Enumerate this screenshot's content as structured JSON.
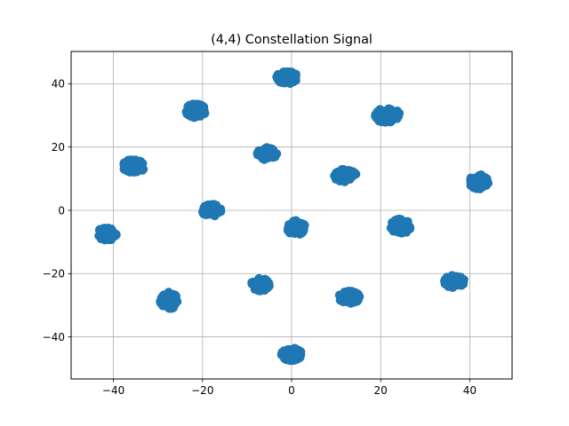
{
  "chart_data": {
    "type": "scatter",
    "title": "(4,4) Constellation Signal",
    "xlabel": "",
    "ylabel": "",
    "xlim": [
      -49.5,
      49.5
    ],
    "ylim": [
      -53.3,
      50.2
    ],
    "grid": true,
    "x_ticks": [
      -40,
      -20,
      0,
      20,
      40
    ],
    "y_ticks": [
      -40,
      -20,
      0,
      20,
      40
    ],
    "x_tick_labels": [
      "−40",
      "−20",
      "0",
      "20",
      "40"
    ],
    "y_tick_labels": [
      "−40",
      "−20",
      "0",
      "20",
      "40"
    ],
    "marker_color": "#1f77b4",
    "series": [
      {
        "clusters": [
          {
            "center": [
              -1,
              42
            ],
            "spread": [
              2.4,
              2.0
            ]
          },
          {
            "center": [
              -21.5,
              31.5
            ],
            "spread": [
              2.3,
              2.2
            ]
          },
          {
            "center": [
              21.5,
              30
            ],
            "spread": [
              2.8,
              2.4
            ]
          },
          {
            "center": [
              -35.5,
              14
            ],
            "spread": [
              2.6,
              2.1
            ]
          },
          {
            "center": [
              -5.5,
              18
            ],
            "spread": [
              2.2,
              2.1
            ]
          },
          {
            "center": [
              12,
              11
            ],
            "spread": [
              2.6,
              2.1
            ]
          },
          {
            "center": [
              42,
              9
            ],
            "spread": [
              2.2,
              2.3
            ]
          },
          {
            "center": [
              -18,
              0
            ],
            "spread": [
              2.2,
              2.0
            ]
          },
          {
            "center": [
              1,
              -5.5
            ],
            "spread": [
              2.1,
              2.3
            ]
          },
          {
            "center": [
              24.5,
              -5
            ],
            "spread": [
              2.4,
              2.3
            ]
          },
          {
            "center": [
              -41.5,
              -7.5
            ],
            "spread": [
              2.3,
              2.1
            ]
          },
          {
            "center": [
              -7,
              -23.5
            ],
            "spread": [
              2.1,
              2.0
            ]
          },
          {
            "center": [
              36.5,
              -22.5
            ],
            "spread": [
              2.3,
              2.0
            ]
          },
          {
            "center": [
              13,
              -27.5
            ],
            "spread": [
              2.4,
              2.1
            ]
          },
          {
            "center": [
              -27.5,
              -28.5
            ],
            "spread": [
              2.0,
              2.7
            ]
          },
          {
            "center": [
              0,
              -45.5
            ],
            "spread": [
              2.3,
              2.0
            ]
          }
        ]
      }
    ]
  }
}
